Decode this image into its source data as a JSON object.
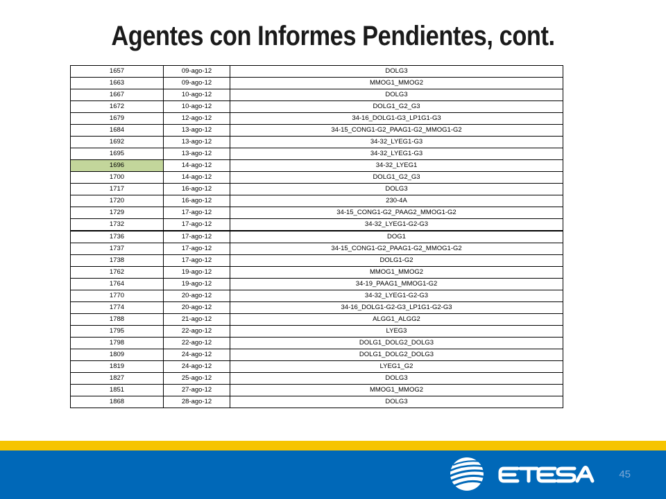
{
  "slide": {
    "title": "Agentes con Informes Pendientes, cont.",
    "page_number": "45",
    "logo_text": "ETESA"
  },
  "colors": {
    "highlight_cell": "#c3d69b",
    "band_yellow": "#f6c400",
    "band_blue": "#0068b8"
  },
  "table": {
    "highlighted_row": 8,
    "thick_border_after_row": 14,
    "rows": [
      {
        "id": "1657",
        "date": "09-ago-12",
        "code": "DOLG3"
      },
      {
        "id": "1663",
        "date": "09-ago-12",
        "code": "MMOG1_MMOG2"
      },
      {
        "id": "1667",
        "date": "10-ago-12",
        "code": "DOLG3"
      },
      {
        "id": "1672",
        "date": "10-ago-12",
        "code": "DOLG1_G2_G3"
      },
      {
        "id": "1679",
        "date": "12-ago-12",
        "code": "34-16_DOLG1-G3_LP1G1-G3"
      },
      {
        "id": "1684",
        "date": "13-ago-12",
        "code": "34-15_CONG1-G2_PAAG1-G2_MMOG1-G2"
      },
      {
        "id": "1692",
        "date": "13-ago-12",
        "code": "34-32_LYEG1-G3"
      },
      {
        "id": "1695",
        "date": "13-ago-12",
        "code": "34-32_LYEG1-G3"
      },
      {
        "id": "1696",
        "date": "14-ago-12",
        "code": "34-32_LYEG1"
      },
      {
        "id": "1700",
        "date": "14-ago-12",
        "code": "DOLG1_G2_G3"
      },
      {
        "id": "1717",
        "date": "16-ago-12",
        "code": "DOLG3"
      },
      {
        "id": "1720",
        "date": "16-ago-12",
        "code": "230-4A"
      },
      {
        "id": "1729",
        "date": "17-ago-12",
        "code": "34-15_CONG1-G2_PAAG2_MMOG1-G2"
      },
      {
        "id": "1732",
        "date": "17-ago-12",
        "code": "34-32_LYEG1-G2-G3"
      },
      {
        "id": "1736",
        "date": "17-ago-12",
        "code": "DOG1"
      },
      {
        "id": "1737",
        "date": "17-ago-12",
        "code": "34-15_CONG1-G2_PAAG1-G2_MMOG1-G2"
      },
      {
        "id": "1738",
        "date": "17-ago-12",
        "code": "DOLG1-G2"
      },
      {
        "id": "1762",
        "date": "19-ago-12",
        "code": "MMOG1_MMOG2"
      },
      {
        "id": "1764",
        "date": "19-ago-12",
        "code": "34-19_PAAG1_MMOG1-G2"
      },
      {
        "id": "1770",
        "date": "20-ago-12",
        "code": "34-32_LYEG1-G2-G3"
      },
      {
        "id": "1774",
        "date": "20-ago-12",
        "code": "34-16_DOLG1-G2-G3_LP1G1-G2-G3"
      },
      {
        "id": "1788",
        "date": "21-ago-12",
        "code": "ALGG1_ALGG2"
      },
      {
        "id": "1795",
        "date": "22-ago-12",
        "code": "LYEG3"
      },
      {
        "id": "1798",
        "date": "22-ago-12",
        "code": "DOLG1_DOLG2_DOLG3"
      },
      {
        "id": "1809",
        "date": "24-ago-12",
        "code": "DOLG1_DOLG2_DOLG3"
      },
      {
        "id": "1819",
        "date": "24-ago-12",
        "code": "LYEG1_G2"
      },
      {
        "id": "1827",
        "date": "25-ago-12",
        "code": "DOLG3"
      },
      {
        "id": "1851",
        "date": "27-ago-12",
        "code": "MMOG1_MMOG2"
      },
      {
        "id": "1868",
        "date": "28-ago-12",
        "code": "DOLG3"
      }
    ]
  }
}
